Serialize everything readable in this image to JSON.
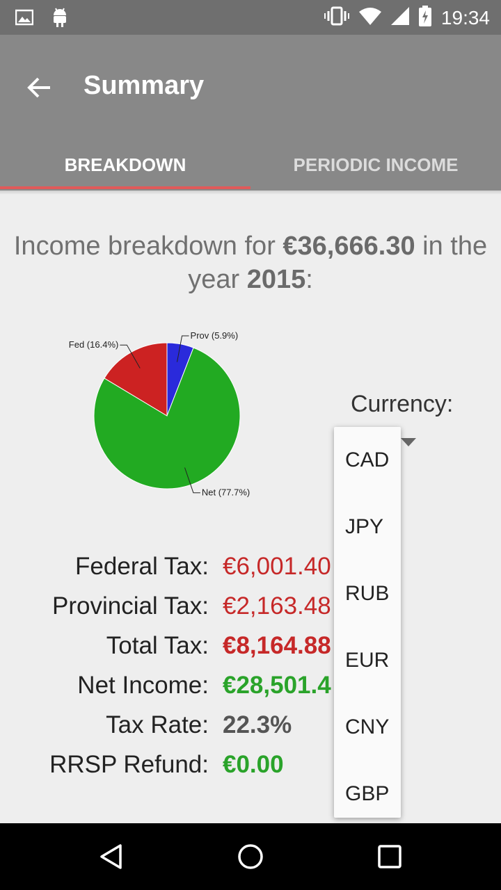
{
  "status_bar": {
    "time": "19:34",
    "icons": [
      "image-icon",
      "android-icon",
      "vibrate-icon",
      "wifi-icon",
      "signal-icon",
      "battery-charging-icon"
    ]
  },
  "app_bar": {
    "title": "Summary",
    "back_icon": "arrow-left-icon",
    "tabs": [
      {
        "label": "BREAKDOWN",
        "selected": true
      },
      {
        "label": "PERIODIC INCOME",
        "selected": false
      }
    ]
  },
  "heading": {
    "prefix": "Income breakdown for ",
    "amount": "€36,666.30",
    "middle": " in the year ",
    "year": "2015",
    "suffix": ":"
  },
  "chart_data": {
    "type": "pie",
    "slices": [
      {
        "label": "Prov (5.9%)",
        "value": 5.9,
        "color": "#2a2adb"
      },
      {
        "label": "Net (77.7%)",
        "value": 77.7,
        "color": "#22aa22"
      },
      {
        "label": "Fed (16.4%)",
        "value": 16.4,
        "color": "#cc2222"
      }
    ]
  },
  "currency": {
    "label": "Currency:",
    "options": [
      "CAD",
      "JPY",
      "RUB",
      "EUR",
      "CNY",
      "GBP"
    ]
  },
  "summary": [
    {
      "label": "Federal Tax:",
      "value": "€6,001.40",
      "color": "red",
      "bold": false
    },
    {
      "label": "Provincial Tax:",
      "value": "€2,163.48",
      "color": "red",
      "bold": false
    },
    {
      "label": "Total Tax:",
      "value": "€8,164.88",
      "color": "red",
      "bold": true
    },
    {
      "label": "Net Income:",
      "value": "€28,501.4",
      "color": "green",
      "bold": true
    },
    {
      "label": "Tax Rate:",
      "value": "22.3%",
      "color": "grey",
      "bold": true
    },
    {
      "label": "RRSP Refund:",
      "value": "€0.00",
      "color": "green",
      "bold": true
    }
  ],
  "nav_bar": {
    "icons": [
      "back-triangle-icon",
      "home-circle-icon",
      "recents-square-icon"
    ]
  }
}
